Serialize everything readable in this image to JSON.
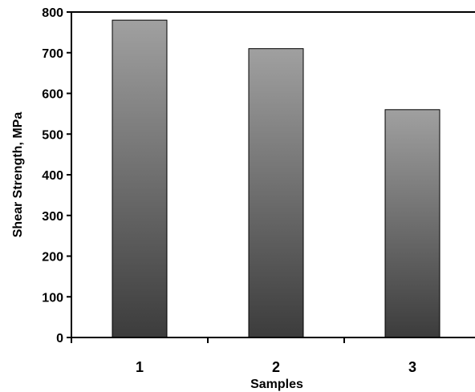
{
  "chart_data": {
    "type": "bar",
    "title": "",
    "xlabel": "Samples",
    "ylabel": "Shear Strength, MPa",
    "categories": [
      "1",
      "2",
      "3"
    ],
    "values": [
      780,
      710,
      560
    ],
    "ylim": [
      0,
      800
    ],
    "yticks": [
      0,
      100,
      200,
      300,
      400,
      500,
      600,
      700,
      800
    ],
    "grid": false,
    "legend": "none",
    "bar_color_top": "#a0a0a0",
    "bar_color_bottom": "#3c3c3c"
  }
}
